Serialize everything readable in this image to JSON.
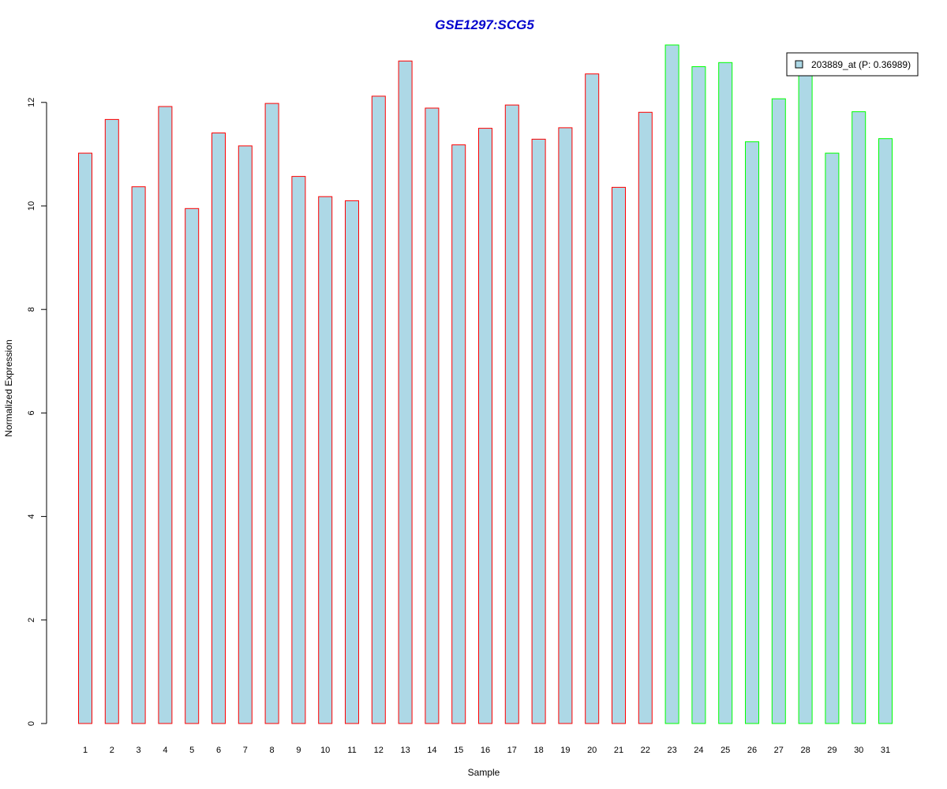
{
  "chart_data": {
    "type": "bar",
    "title": "GSE1297:SCG5",
    "xlabel": "Sample",
    "ylabel": "Normalized Expression",
    "ylim": [
      0,
      13.5
    ],
    "yticks": [
      "0",
      "2",
      "4",
      "6",
      "8",
      "10",
      "12"
    ],
    "grid": false,
    "legend_position": "top-right",
    "categories": [
      "1",
      "2",
      "3",
      "4",
      "5",
      "6",
      "7",
      "8",
      "9",
      "10",
      "11",
      "12",
      "13",
      "14",
      "15",
      "16",
      "17",
      "18",
      "19",
      "20",
      "21",
      "22",
      "23",
      "24",
      "25",
      "26",
      "27",
      "28",
      "29",
      "30",
      "31"
    ],
    "series": [
      {
        "name": "203889_at (P: 0.36989)",
        "values": [
          11.02,
          11.67,
          10.37,
          11.92,
          9.95,
          11.41,
          11.16,
          11.98,
          10.57,
          10.18,
          10.1,
          12.12,
          12.8,
          11.89,
          11.18,
          11.5,
          11.95,
          11.29,
          11.51,
          12.55,
          10.36,
          11.81,
          13.11,
          12.69,
          12.77,
          11.24,
          12.07,
          12.62,
          11.02,
          11.82,
          11.3
        ],
        "groups": [
          "a",
          "a",
          "a",
          "a",
          "a",
          "a",
          "a",
          "a",
          "a",
          "a",
          "a",
          "a",
          "a",
          "a",
          "a",
          "a",
          "a",
          "a",
          "a",
          "a",
          "a",
          "a",
          "b",
          "b",
          "b",
          "b",
          "b",
          "b",
          "b",
          "b",
          "b"
        ]
      }
    ],
    "colors": {
      "bar_fill": "#add8e6",
      "group_a_border": "#ff0000",
      "group_b_border": "#00ff00",
      "title": "#0000cd"
    }
  }
}
